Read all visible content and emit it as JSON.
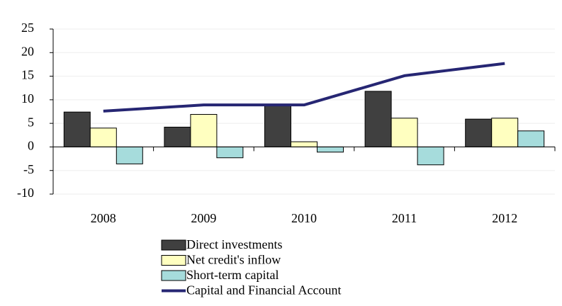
{
  "chart_data": {
    "type": "bar",
    "categories": [
      "2008",
      "2009",
      "2010",
      "2011",
      "2012"
    ],
    "series": [
      {
        "name": "Direct investments",
        "color": "#404040",
        "values": [
          7.4,
          4.2,
          9.0,
          11.8,
          5.9
        ]
      },
      {
        "name": "Net credit's inflow",
        "color": "#ffffc0",
        "values": [
          4.0,
          6.9,
          1.1,
          6.1,
          6.1
        ]
      },
      {
        "name": "Short-term capital",
        "color": "#a6dcdc",
        "values": [
          -3.6,
          -2.3,
          -1.1,
          -3.8,
          3.4
        ]
      },
      {
        "name": "Capital and Financial Account",
        "color": "#262673",
        "type": "line",
        "values": [
          7.6,
          8.9,
          8.9,
          15.1,
          17.7
        ]
      }
    ],
    "ylim": [
      -10,
      25
    ],
    "yticks": [
      -10,
      -5,
      0,
      5,
      10,
      15,
      20,
      25
    ],
    "grid": true,
    "legend": "bottom"
  }
}
